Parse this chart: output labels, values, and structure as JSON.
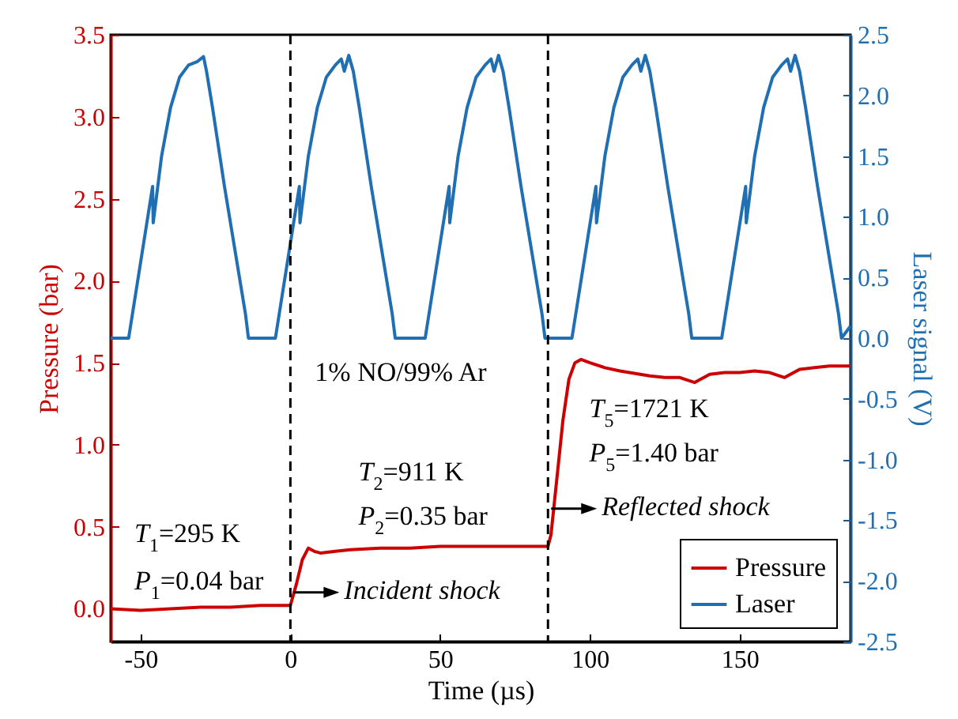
{
  "chart_data": {
    "type": "line",
    "xlabel": "Time (µs)",
    "ylabel": "Pressure (bar)",
    "y2label": "Laser signal (V)",
    "xlim": [
      -60,
      187
    ],
    "xticks": [
      {
        "value": -50,
        "label": "-50"
      },
      0,
      50,
      100,
      150
    ],
    "ylim": [
      -0.2,
      3.5
    ],
    "yticks": [
      {
        "value": 0,
        "label": "0.0"
      },
      0.5,
      {
        "value": 1,
        "label": "1.0"
      },
      1.5,
      {
        "value": 2,
        "label": "2.0"
      },
      2.5,
      {
        "value": 3,
        "label": "3.0"
      },
      3.5
    ],
    "y2lim": [
      -2.5,
      2.5
    ],
    "y2ticks": [
      {
        "value": -2.5,
        "label": "-2.5"
      },
      {
        "value": -2,
        "label": "-2.0"
      },
      {
        "value": -1.5,
        "label": "-1.5"
      },
      {
        "value": -1,
        "label": "-1.0"
      },
      {
        "value": -0.5,
        "label": "-0.5"
      },
      {
        "value": 0,
        "label": "0.0"
      },
      0.5,
      {
        "value": 1,
        "label": "1.0"
      },
      1.5,
      {
        "value": 2,
        "label": "2.0"
      },
      2.5
    ],
    "legend": "bottom right",
    "grid": false,
    "marker": "none",
    "line_style": "solid",
    "series": [
      {
        "name": "Pressure",
        "color": "#cc0000",
        "x": [
          -60,
          -50,
          -40,
          -30,
          -20,
          -10,
          -2,
          0,
          2,
          4,
          6,
          8,
          10,
          15,
          20,
          30,
          40,
          50,
          60,
          70,
          80,
          86,
          87,
          89,
          91,
          93,
          95,
          97,
          100,
          105,
          110,
          120,
          125,
          130,
          135,
          140,
          145,
          150,
          155,
          160,
          165,
          170,
          175,
          180,
          187
        ],
        "values": [
          0.0,
          -0.01,
          0.0,
          0.01,
          0.01,
          0.02,
          0.02,
          0.02,
          0.15,
          0.3,
          0.37,
          0.35,
          0.34,
          0.35,
          0.36,
          0.37,
          0.37,
          0.38,
          0.38,
          0.38,
          0.38,
          0.38,
          0.45,
          0.8,
          1.15,
          1.4,
          1.5,
          1.52,
          1.5,
          1.47,
          1.45,
          1.42,
          1.41,
          1.41,
          1.38,
          1.43,
          1.44,
          1.44,
          1.45,
          1.44,
          1.41,
          1.46,
          1.47,
          1.48,
          1.48
        ]
      },
      {
        "name": "Laser",
        "color": "#1f6fb2",
        "axis": "y2",
        "x": [
          -60,
          -54,
          -46,
          -45.8,
          -43,
          -40,
          -37,
          -34,
          -31,
          -29,
          -28,
          -26,
          -22,
          -18,
          -15,
          -14,
          -5,
          3,
          3.2,
          6,
          9,
          12,
          15,
          17,
          18,
          19.5,
          21,
          23,
          27,
          31,
          34,
          35,
          45,
          53,
          53.2,
          56,
          59,
          62,
          65,
          67,
          68,
          69.5,
          71,
          73,
          77,
          81,
          84,
          85,
          94,
          102,
          102.2,
          105,
          108,
          111,
          114,
          116,
          117,
          118.5,
          120,
          122,
          126,
          130,
          133,
          134,
          144,
          152,
          152.2,
          155,
          158,
          161,
          164,
          166,
          167,
          168.5,
          170,
          172,
          176,
          180,
          183,
          184,
          187
        ],
        "values": [
          0,
          0,
          1.25,
          0.95,
          1.5,
          1.9,
          2.15,
          2.25,
          2.28,
          2.32,
          2.2,
          1.9,
          1.25,
          0.65,
          0.2,
          0,
          0,
          1.25,
          0.95,
          1.5,
          1.9,
          2.15,
          2.25,
          2.3,
          2.2,
          2.33,
          2.2,
          1.9,
          1.25,
          0.65,
          0.2,
          0,
          0,
          1.25,
          0.95,
          1.5,
          1.9,
          2.15,
          2.25,
          2.3,
          2.2,
          2.33,
          2.2,
          1.9,
          1.25,
          0.65,
          0.2,
          0,
          0,
          1.25,
          0.95,
          1.5,
          1.9,
          2.15,
          2.25,
          2.3,
          2.2,
          2.33,
          2.2,
          1.9,
          1.25,
          0.65,
          0.2,
          0,
          0,
          1.25,
          0.95,
          1.5,
          1.9,
          2.15,
          2.25,
          2.3,
          2.2,
          2.33,
          2.2,
          1.9,
          1.25,
          0.65,
          0.2,
          0,
          0.1
        ]
      }
    ],
    "ref_lines": [
      {
        "axis": "x",
        "value": 0,
        "color": "#000000",
        "line_style": "dashed"
      },
      {
        "axis": "x",
        "value": 86,
        "color": "#000000",
        "line_style": "dashed"
      }
    ],
    "annotations": [
      "1% NO/99% Ar",
      "T$_{1}$=295 K",
      "P$_{1}$=0.04 bar",
      "T$_{2}$=911 K",
      "P$_{2}$=0.35 bar",
      "T$_{5}$=1721 K",
      "P$_{5}$=1.40 bar",
      {
        "text": "Incident shock",
        "x": 0,
        "y": 0.1
      },
      {
        "text": "Reflected shock",
        "x": 86,
        "y": 0.61
      }
    ]
  }
}
